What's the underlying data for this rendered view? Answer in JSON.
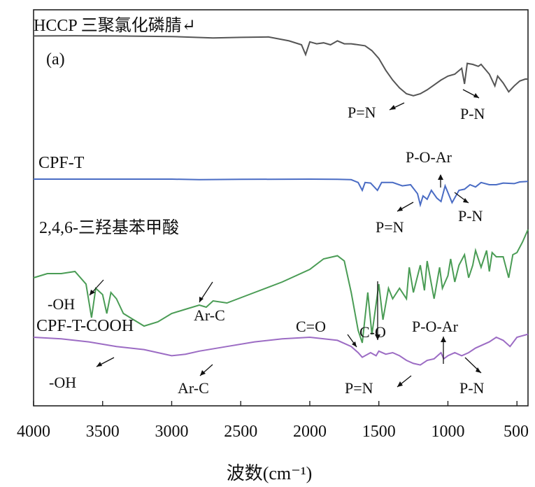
{
  "chart_data": {
    "type": "line",
    "panel_label": "(a)",
    "xlabel": "波数(cm⁻¹)",
    "xlim": [
      4000,
      420
    ],
    "x_ticks": [
      "4000",
      "3500",
      "3000",
      "2500",
      "2000",
      "1500",
      "1000",
      "500"
    ],
    "x_tick_values": [
      4000,
      3500,
      3000,
      2500,
      2000,
      1500,
      1000,
      500
    ],
    "y_axis": "offset spectra, no scale shown",
    "series": [
      {
        "name": "HCCP 三聚氯化磷腈↵",
        "color": "#555555",
        "points": [
          [
            4000,
            0.05
          ],
          [
            3700,
            0.04
          ],
          [
            3400,
            0.05
          ],
          [
            3000,
            0.08
          ],
          [
            2700,
            0.15
          ],
          [
            2500,
            0.12
          ],
          [
            2300,
            0.1
          ],
          [
            2150,
            0.3
          ],
          [
            2060,
            0.5
          ],
          [
            2030,
            1.0
          ],
          [
            2000,
            0.35
          ],
          [
            1950,
            0.45
          ],
          [
            1900,
            0.4
          ],
          [
            1850,
            0.5
          ],
          [
            1800,
            0.3
          ],
          [
            1750,
            0.45
          ],
          [
            1700,
            0.45
          ],
          [
            1600,
            0.55
          ],
          [
            1550,
            0.8
          ],
          [
            1500,
            1.2
          ],
          [
            1450,
            1.8
          ],
          [
            1400,
            2.3
          ],
          [
            1350,
            2.7
          ],
          [
            1300,
            3.0
          ],
          [
            1250,
            3.1
          ],
          [
            1200,
            3.0
          ],
          [
            1150,
            2.8
          ],
          [
            1100,
            2.55
          ],
          [
            1050,
            2.3
          ],
          [
            1000,
            2.1
          ],
          [
            950,
            2.0
          ],
          [
            900,
            1.7
          ],
          [
            880,
            2.5
          ],
          [
            860,
            1.45
          ],
          [
            820,
            1.5
          ],
          [
            780,
            1.6
          ],
          [
            760,
            1.5
          ],
          [
            700,
            2.0
          ],
          [
            660,
            2.6
          ],
          [
            640,
            2.1
          ],
          [
            600,
            2.45
          ],
          [
            560,
            2.9
          ],
          [
            520,
            2.6
          ],
          [
            480,
            2.35
          ],
          [
            440,
            2.25
          ],
          [
            420,
            2.25
          ]
        ]
      },
      {
        "name": "CPF-T",
        "color": "#4a6cc4",
        "points": [
          [
            4000,
            0.0
          ],
          [
            3500,
            0.0
          ],
          [
            3000,
            0.0
          ],
          [
            2800,
            0.05
          ],
          [
            2500,
            0.02
          ],
          [
            2000,
            0.0
          ],
          [
            1800,
            0.02
          ],
          [
            1700,
            0.05
          ],
          [
            1650,
            0.3
          ],
          [
            1620,
            1.0
          ],
          [
            1600,
            0.3
          ],
          [
            1560,
            0.35
          ],
          [
            1510,
            1.0
          ],
          [
            1480,
            0.3
          ],
          [
            1400,
            0.3
          ],
          [
            1330,
            0.6
          ],
          [
            1270,
            0.5
          ],
          [
            1220,
            1.3
          ],
          [
            1200,
            2.3
          ],
          [
            1180,
            1.5
          ],
          [
            1150,
            1.8
          ],
          [
            1120,
            1.0
          ],
          [
            1080,
            1.7
          ],
          [
            1050,
            2.0
          ],
          [
            1020,
            0.6
          ],
          [
            1000,
            1.2
          ],
          [
            970,
            2.1
          ],
          [
            920,
            1.0
          ],
          [
            880,
            0.9
          ],
          [
            840,
            0.5
          ],
          [
            800,
            0.7
          ],
          [
            760,
            0.3
          ],
          [
            700,
            0.5
          ],
          [
            650,
            0.5
          ],
          [
            600,
            0.35
          ],
          [
            520,
            0.4
          ],
          [
            480,
            0.25
          ],
          [
            420,
            0.2
          ]
        ]
      },
      {
        "name": "2,4,6-三羟基苯甲酸",
        "color": "#4a9c55",
        "points": [
          [
            4000,
            1.5
          ],
          [
            3900,
            1.3
          ],
          [
            3800,
            1.3
          ],
          [
            3700,
            1.2
          ],
          [
            3620,
            1.8
          ],
          [
            3580,
            3.4
          ],
          [
            3550,
            2.0
          ],
          [
            3500,
            2.3
          ],
          [
            3470,
            3.2
          ],
          [
            3440,
            2.2
          ],
          [
            3400,
            2.5
          ],
          [
            3350,
            3.2
          ],
          [
            3300,
            3.4
          ],
          [
            3200,
            3.8
          ],
          [
            3100,
            3.6
          ],
          [
            3000,
            3.2
          ],
          [
            2900,
            3.0
          ],
          [
            2800,
            2.8
          ],
          [
            2750,
            2.9
          ],
          [
            2700,
            2.6
          ],
          [
            2600,
            2.7
          ],
          [
            2400,
            2.2
          ],
          [
            2200,
            1.7
          ],
          [
            2000,
            1.1
          ],
          [
            1900,
            0.6
          ],
          [
            1800,
            0.45
          ],
          [
            1750,
            0.7
          ],
          [
            1700,
            2.2
          ],
          [
            1650,
            4.0
          ],
          [
            1620,
            4.6
          ],
          [
            1580,
            2.2
          ],
          [
            1550,
            4.2
          ],
          [
            1500,
            1.8
          ],
          [
            1470,
            3.5
          ],
          [
            1430,
            2.0
          ],
          [
            1400,
            2.5
          ],
          [
            1350,
            2.0
          ],
          [
            1300,
            2.5
          ],
          [
            1280,
            1.0
          ],
          [
            1250,
            2.2
          ],
          [
            1200,
            0.9
          ],
          [
            1170,
            2.1
          ],
          [
            1150,
            0.7
          ],
          [
            1100,
            2.5
          ],
          [
            1060,
            1.0
          ],
          [
            1040,
            2.0
          ],
          [
            1000,
            1.4
          ],
          [
            980,
            0.6
          ],
          [
            950,
            1.7
          ],
          [
            920,
            0.9
          ],
          [
            880,
            0.4
          ],
          [
            850,
            1.5
          ],
          [
            820,
            0.9
          ],
          [
            800,
            0.2
          ],
          [
            760,
            1.0
          ],
          [
            720,
            0.2
          ],
          [
            700,
            1.2
          ],
          [
            680,
            0.3
          ],
          [
            650,
            0.5
          ],
          [
            600,
            0.5
          ],
          [
            560,
            1.5
          ],
          [
            530,
            0.4
          ],
          [
            500,
            0.3
          ],
          [
            460,
            -0.2
          ],
          [
            420,
            -0.8
          ]
        ]
      },
      {
        "name": "CPF-T-COOH",
        "color": "#9c6cc4",
        "points": [
          [
            4000,
            0.0
          ],
          [
            3800,
            0.1
          ],
          [
            3600,
            0.3
          ],
          [
            3400,
            0.6
          ],
          [
            3200,
            0.8
          ],
          [
            3000,
            1.2
          ],
          [
            2900,
            1.1
          ],
          [
            2800,
            0.9
          ],
          [
            2600,
            0.6
          ],
          [
            2400,
            0.3
          ],
          [
            2200,
            0.1
          ],
          [
            2000,
            0.0
          ],
          [
            1800,
            0.2
          ],
          [
            1700,
            0.6
          ],
          [
            1650,
            1.0
          ],
          [
            1620,
            1.3
          ],
          [
            1600,
            1.2
          ],
          [
            1560,
            1.0
          ],
          [
            1520,
            1.2
          ],
          [
            1500,
            0.9
          ],
          [
            1450,
            1.1
          ],
          [
            1400,
            1.0
          ],
          [
            1350,
            1.2
          ],
          [
            1300,
            1.5
          ],
          [
            1250,
            1.7
          ],
          [
            1200,
            1.8
          ],
          [
            1150,
            1.5
          ],
          [
            1100,
            1.4
          ],
          [
            1050,
            1.0
          ],
          [
            1030,
            1.4
          ],
          [
            1000,
            1.2
          ],
          [
            950,
            1.0
          ],
          [
            900,
            1.2
          ],
          [
            850,
            1.0
          ],
          [
            800,
            0.7
          ],
          [
            700,
            0.3
          ],
          [
            650,
            0.0
          ],
          [
            600,
            0.2
          ],
          [
            550,
            0.6
          ],
          [
            500,
            0.0
          ],
          [
            460,
            -0.1
          ],
          [
            420,
            -0.2
          ]
        ]
      }
    ],
    "annotations": {
      "hccp_pn_double": "P=N",
      "hccp_pn_single": "P-N",
      "cpft_poar": "P-O-Ar",
      "cpft_pn_double": "P=N",
      "cpft_pn_single": "P-N",
      "acid_oh": "-OH",
      "acid_arc": "Ar-C",
      "cooh_co_double": "C=O",
      "cooh_co_single": "C-O",
      "cooh_poar": "P-O-Ar",
      "cooh_oh": "-OH",
      "cooh_arc": "Ar-C",
      "cooh_pn_double": "P=N",
      "cooh_pn_single": "P-N"
    },
    "grid": false,
    "legend": "none; series names written beside traces"
  }
}
